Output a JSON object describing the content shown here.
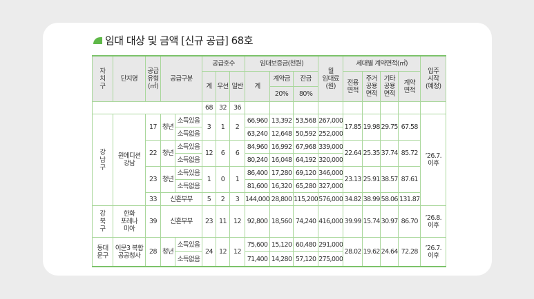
{
  "title": "임대 대상 및 금액 [신규 공급] 68호",
  "colors": {
    "accent": "#5fb848",
    "border": "#a9d79b",
    "header_bg": "#e8e8e8"
  },
  "header": {
    "district": "자\n치\n구",
    "complex": "단지명",
    "type": "공급\n유형\n(㎡)",
    "category": "공급구분",
    "supply": "공급호수",
    "supply_total": "계",
    "supply_priority": "우선",
    "supply_general": "일반",
    "deposit": "임대보증금(천원)",
    "deposit_total": "계",
    "deposit_down": "계약금",
    "deposit_balance": "잔금",
    "down_pct": "20%",
    "balance_pct": "80%",
    "rent": "월\n임대료\n(원)",
    "area": "세대별 계약면적(㎡)",
    "area_exclusive": "전용\n면적",
    "area_residential": "주거\n공용\n면적",
    "area_other": "기타\n공용\n면적",
    "area_contract": "계약\n면적",
    "move_in": "입주\n시작\n(예정)"
  },
  "totals": [
    "68",
    "32",
    "36"
  ],
  "rows": [
    [
      "강\n남\n구",
      "원에디션\n강남",
      "17",
      "청년",
      "소득있음",
      "3",
      "1",
      "2",
      "66,960",
      "13,392",
      "53,568",
      "267,000",
      "17.85",
      "19.98",
      "29.75",
      "67.58",
      "’26.7.\n이후"
    ],
    [
      "소득없음",
      "63,240",
      "12,648",
      "50,592",
      "252,000"
    ],
    [
      "22",
      "청년",
      "소득있음",
      "12",
      "6",
      "6",
      "84,960",
      "16,992",
      "67,968",
      "339,000",
      "22.64",
      "25.35",
      "37.74",
      "85.72"
    ],
    [
      "소득없음",
      "80,240",
      "16,048",
      "64,192",
      "320,000"
    ],
    [
      "23",
      "청년",
      "소득있음",
      "1",
      "0",
      "1",
      "86,400",
      "17,280",
      "69,120",
      "346,000",
      "23.13",
      "25.91",
      "38.57",
      "87.61"
    ],
    [
      "소득없음",
      "81,600",
      "16,320",
      "65,280",
      "327,000"
    ],
    [
      "33",
      "신혼부부",
      "5",
      "2",
      "3",
      "144,000",
      "28,800",
      "115,200",
      "576,000",
      "34.82",
      "38.99",
      "58.06",
      "131.87"
    ],
    [
      "강\n북\n구",
      "한화\n포레나\n미아",
      "39",
      "신혼부부",
      "23",
      "11",
      "12",
      "92,800",
      "18,560",
      "74,240",
      "416,000",
      "39.99",
      "15.74",
      "30.97",
      "86.70",
      "’26.8.\n이후"
    ],
    [
      "동대\n문구",
      "이문3 복합\n공공청사",
      "28",
      "청년",
      "소득있음",
      "24",
      "12",
      "12",
      "75,600",
      "15,120",
      "60,480",
      "291,000",
      "28.02",
      "19.62",
      "24.64",
      "72.28",
      "’26.7.\n이후"
    ],
    [
      "소득없음",
      "71,400",
      "14,280",
      "57,120",
      "275,000"
    ]
  ]
}
